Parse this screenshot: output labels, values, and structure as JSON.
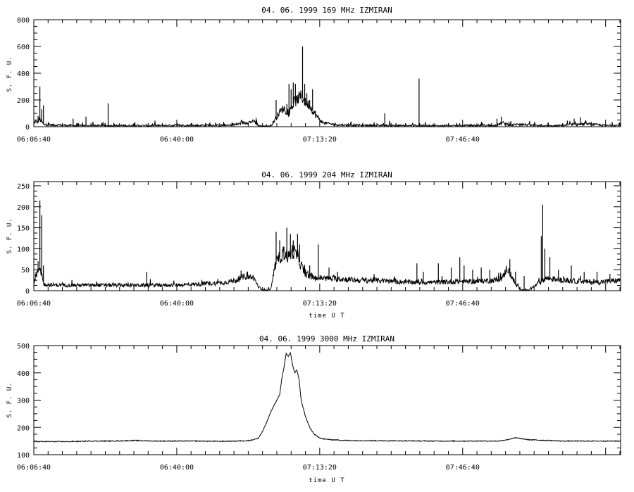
{
  "figure": {
    "background": "#ffffff",
    "line_color": "#000000"
  },
  "chart_data": [
    {
      "type": "line",
      "title": "04. 06. 1999    169 MHz    IZMIRAN",
      "ylabel": "S. F. U.",
      "xlabel": "",
      "ylim": [
        0,
        800
      ],
      "yticks": [
        0,
        200,
        400,
        600,
        800
      ],
      "xlim": [
        "06:06:40",
        "08:23:30"
      ],
      "xticks": [
        "06:06:40",
        "06:40:00",
        "07:13:20",
        "07:46:40"
      ],
      "grid": false,
      "series": [
        {
          "color": "#000000",
          "baseline": 8,
          "x": [
            "06:06:40",
            "06:07:00",
            "06:07:30",
            "06:08:00",
            "06:09:00",
            "06:12:00",
            "06:16:00",
            "06:20:00",
            "06:24:00",
            "06:28:00",
            "06:32:00",
            "06:36:00",
            "06:40:00",
            "06:44:00",
            "06:48:00",
            "06:52:00",
            "06:56:00",
            "06:58:00",
            "06:59:00",
            "07:00:00",
            "07:01:00",
            "07:02:00",
            "07:03:00",
            "07:04:00",
            "07:05:00",
            "07:06:00",
            "07:07:00",
            "07:08:00",
            "07:09:00",
            "07:10:00",
            "07:11:00",
            "07:12:00",
            "07:14:00",
            "07:17:00",
            "07:20:00",
            "07:24:00",
            "07:28:00",
            "07:32:00",
            "07:36:00",
            "07:40:00",
            "07:44:00",
            "07:48:00",
            "07:52:00",
            "07:54:00",
            "07:55:00",
            "07:56:00",
            "07:58:00",
            "08:00:00",
            "08:04:00",
            "08:08:00",
            "08:12:00",
            "08:16:00",
            "08:20:00",
            "08:23:30"
          ],
          "values": [
            20,
            40,
            30,
            60,
            15,
            12,
            8,
            7,
            6,
            8,
            7,
            8,
            10,
            8,
            12,
            8,
            30,
            40,
            10,
            0,
            0,
            5,
            60,
            110,
            140,
            90,
            160,
            200,
            230,
            180,
            160,
            100,
            30,
            15,
            10,
            9,
            8,
            7,
            8,
            7,
            6,
            8,
            10,
            8,
            15,
            30,
            10,
            20,
            6,
            4,
            15,
            20,
            8,
            10
          ],
          "spikes": [
            {
              "x": "06:07:00",
              "y": 40
            },
            {
              "x": "06:07:40",
              "y": 80
            },
            {
              "x": "06:08:05",
              "y": 300
            },
            {
              "x": "06:08:30",
              "y": 130
            },
            {
              "x": "06:08:55",
              "y": 160
            },
            {
              "x": "06:15:50",
              "y": 60
            },
            {
              "x": "06:18:50",
              "y": 75
            },
            {
              "x": "06:24:00",
              "y": 175
            },
            {
              "x": "06:58:30",
              "y": 65
            },
            {
              "x": "07:03:10",
              "y": 200
            },
            {
              "x": "07:05:40",
              "y": 170
            },
            {
              "x": "07:06:10",
              "y": 320
            },
            {
              "x": "07:06:40",
              "y": 280
            },
            {
              "x": "07:07:10",
              "y": 330
            },
            {
              "x": "07:07:40",
              "y": 320
            },
            {
              "x": "07:08:30",
              "y": 260
            },
            {
              "x": "07:09:00",
              "y": 240
            },
            {
              "x": "07:09:20",
              "y": 600
            },
            {
              "x": "07:09:50",
              "y": 320
            },
            {
              "x": "07:10:20",
              "y": 250
            },
            {
              "x": "07:11:00",
              "y": 200
            },
            {
              "x": "07:11:40",
              "y": 280
            },
            {
              "x": "07:12:20",
              "y": 120
            },
            {
              "x": "07:28:30",
              "y": 100
            },
            {
              "x": "07:36:30",
              "y": 360
            },
            {
              "x": "07:54:40",
              "y": 60
            },
            {
              "x": "07:55:40",
              "y": 75
            },
            {
              "x": "07:57:30",
              "y": 35
            },
            {
              "x": "08:12:40",
              "y": 60
            },
            {
              "x": "08:14:10",
              "y": 70
            }
          ]
        }
      ]
    },
    {
      "type": "line",
      "title": "04. 06. 1999    204 MHz    IZMIRAN",
      "ylabel": "S. F. U.",
      "xlabel": "time  U T",
      "ylim": [
        0,
        260
      ],
      "yticks": [
        0,
        50,
        100,
        150,
        200,
        250
      ],
      "xlim": [
        "06:06:40",
        "08:23:30"
      ],
      "xticks": [
        "06:06:40",
        "06:40:00",
        "07:13:20",
        "07:46:40"
      ],
      "grid": false,
      "series": [
        {
          "color": "#000000",
          "baseline": 14,
          "x": [
            "06:06:40",
            "06:07:00",
            "06:07:30",
            "06:08:00",
            "06:08:30",
            "06:09:00",
            "06:10:00",
            "06:14:00",
            "06:20:00",
            "06:26:00",
            "06:32:00",
            "06:38:00",
            "06:44:00",
            "06:50:00",
            "06:54:00",
            "06:56:00",
            "06:58:00",
            "06:59:00",
            "07:00:00",
            "07:01:00",
            "07:02:00",
            "07:03:00",
            "07:04:00",
            "07:05:00",
            "07:06:00",
            "07:07:00",
            "07:08:00",
            "07:09:00",
            "07:10:00",
            "07:11:00",
            "07:12:00",
            "07:14:00",
            "07:18:00",
            "07:22:00",
            "07:26:00",
            "07:30:00",
            "07:34:00",
            "07:38:00",
            "07:42:00",
            "07:46:00",
            "07:50:00",
            "07:54:00",
            "07:56:00",
            "07:57:00",
            "07:58:00",
            "07:59:00",
            "08:00:00",
            "08:01:00",
            "08:02:00",
            "08:04:00",
            "08:06:00",
            "08:10:00",
            "08:14:00",
            "08:18:00",
            "08:23:30"
          ],
          "values": [
            20,
            30,
            40,
            60,
            40,
            15,
            14,
            13,
            13,
            13,
            13,
            13,
            15,
            18,
            25,
            35,
            30,
            10,
            0,
            0,
            5,
            60,
            80,
            90,
            80,
            95,
            85,
            60,
            40,
            35,
            30,
            30,
            28,
            25,
            25,
            22,
            20,
            20,
            20,
            22,
            22,
            25,
            30,
            55,
            35,
            15,
            5,
            0,
            0,
            15,
            30,
            25,
            22,
            20,
            25
          ],
          "spikes": [
            {
              "x": "06:07:10",
              "y": 45
            },
            {
              "x": "06:07:40",
              "y": 70
            },
            {
              "x": "06:08:05",
              "y": 215
            },
            {
              "x": "06:08:30",
              "y": 180
            },
            {
              "x": "06:08:55",
              "y": 60
            },
            {
              "x": "06:33:00",
              "y": 45
            },
            {
              "x": "06:55:00",
              "y": 48
            },
            {
              "x": "06:56:30",
              "y": 45
            },
            {
              "x": "07:03:10",
              "y": 140
            },
            {
              "x": "07:04:00",
              "y": 120
            },
            {
              "x": "07:05:00",
              "y": 105
            },
            {
              "x": "07:05:40",
              "y": 150
            },
            {
              "x": "07:06:30",
              "y": 135
            },
            {
              "x": "07:07:10",
              "y": 120
            },
            {
              "x": "07:08:10",
              "y": 135
            },
            {
              "x": "07:08:40",
              "y": 110
            },
            {
              "x": "07:11:00",
              "y": 60
            },
            {
              "x": "07:13:00",
              "y": 110
            },
            {
              "x": "07:15:30",
              "y": 55
            },
            {
              "x": "07:17:30",
              "y": 45
            },
            {
              "x": "07:36:00",
              "y": 65
            },
            {
              "x": "07:37:30",
              "y": 45
            },
            {
              "x": "07:41:00",
              "y": 65
            },
            {
              "x": "07:44:00",
              "y": 55
            },
            {
              "x": "07:46:00",
              "y": 80
            },
            {
              "x": "07:47:00",
              "y": 60
            },
            {
              "x": "07:49:00",
              "y": 50
            },
            {
              "x": "07:51:00",
              "y": 55
            },
            {
              "x": "07:53:00",
              "y": 50
            },
            {
              "x": "07:57:40",
              "y": 75
            },
            {
              "x": "07:59:00",
              "y": 45
            },
            {
              "x": "08:01:00",
              "y": 35
            },
            {
              "x": "08:05:00",
              "y": 130
            },
            {
              "x": "08:05:20",
              "y": 205
            },
            {
              "x": "08:05:50",
              "y": 100
            },
            {
              "x": "08:07:00",
              "y": 80
            },
            {
              "x": "08:09:00",
              "y": 50
            },
            {
              "x": "08:12:00",
              "y": 60
            },
            {
              "x": "08:15:00",
              "y": 45
            },
            {
              "x": "08:18:00",
              "y": 45
            },
            {
              "x": "08:21:00",
              "y": 40
            }
          ]
        }
      ]
    },
    {
      "type": "line",
      "title": "04. 06. 1999    3000 MHz    IZMIRAN",
      "ylabel": "S. F. U.",
      "xlabel": "time  U T",
      "ylim": [
        100,
        500
      ],
      "yticks": [
        100,
        200,
        300,
        400,
        500
      ],
      "xlim": [
        "06:06:40",
        "08:23:30"
      ],
      "xticks": [
        "06:06:40",
        "06:40:00",
        "07:13:20",
        "07:46:40"
      ],
      "grid": false,
      "series": [
        {
          "color": "#000000",
          "baseline": 0,
          "x": [
            "06:06:40",
            "06:10:00",
            "06:15:00",
            "06:20:00",
            "06:25:00",
            "06:30:00",
            "06:35:00",
            "06:40:00",
            "06:45:00",
            "06:50:00",
            "06:54:00",
            "06:57:00",
            "06:59:00",
            "07:00:00",
            "07:01:00",
            "07:02:00",
            "07:03:00",
            "07:04:00",
            "07:04:30",
            "07:05:00",
            "07:05:30",
            "07:06:00",
            "07:06:30",
            "07:07:00",
            "07:07:30",
            "07:08:00",
            "07:08:30",
            "07:09:00",
            "07:10:00",
            "07:11:00",
            "07:12:00",
            "07:13:00",
            "07:14:00",
            "07:16:00",
            "07:20:00",
            "07:30:00",
            "07:40:00",
            "07:50:00",
            "07:55:00",
            "07:57:00",
            "07:59:00",
            "08:02:00",
            "08:10:00",
            "08:23:30"
          ],
          "values": [
            148,
            148,
            148,
            150,
            150,
            152,
            150,
            150,
            150,
            149,
            150,
            152,
            160,
            185,
            220,
            260,
            290,
            320,
            380,
            420,
            470,
            460,
            475,
            430,
            400,
            410,
            380,
            300,
            240,
            200,
            175,
            165,
            158,
            155,
            152,
            151,
            150,
            150,
            150,
            155,
            162,
            155,
            150,
            150
          ],
          "spikes": []
        }
      ]
    }
  ]
}
